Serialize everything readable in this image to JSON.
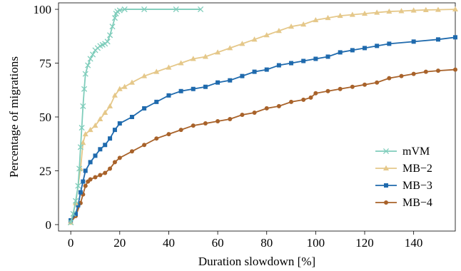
{
  "chart_data": {
    "type": "line",
    "xlabel": "Duration slowdown [%]",
    "ylabel": "Percentage of migrations",
    "xlim": [
      -5,
      157
    ],
    "ylim": [
      -3,
      103
    ],
    "xticks": [
      0,
      20,
      40,
      60,
      80,
      100,
      120,
      140
    ],
    "yticks": [
      0,
      25,
      50,
      75,
      100
    ],
    "grid": false,
    "legend_position": "center-right",
    "series": [
      {
        "name": "mVM",
        "color": "#7fcdbb",
        "marker": "x",
        "x": [
          0,
          1,
          2,
          3,
          3.5,
          4,
          4.5,
          5,
          5.5,
          6,
          7,
          8,
          9,
          10,
          11,
          12,
          13,
          14,
          15,
          16,
          17,
          18,
          18.5,
          19,
          20,
          22,
          30,
          43,
          53
        ],
        "y": [
          1,
          5,
          11,
          18,
          26,
          36,
          45,
          55,
          63,
          70,
          74,
          77,
          79,
          81,
          82,
          83,
          83.5,
          84,
          85,
          88,
          92,
          96,
          98,
          99,
          99.5,
          100,
          100,
          100,
          100
        ]
      },
      {
        "name": "MB−2",
        "color": "#e5c88a",
        "marker": "triangle",
        "x": [
          0,
          2,
          4,
          5,
          6,
          8,
          10,
          12,
          14,
          16,
          18,
          20,
          22,
          25,
          30,
          35,
          40,
          45,
          50,
          55,
          60,
          65,
          70,
          75,
          80,
          85,
          90,
          95,
          100,
          105,
          110,
          115,
          120,
          125,
          130,
          135,
          140,
          145,
          150,
          157
        ],
        "y": [
          1,
          10,
          26,
          38,
          42,
          44,
          46,
          49,
          52,
          55,
          60,
          63,
          64,
          66,
          69,
          71,
          73,
          75,
          77,
          78,
          80,
          82,
          84,
          86,
          88,
          90,
          92,
          93,
          95,
          96,
          97,
          97.5,
          98,
          98.5,
          99,
          99.2,
          99.5,
          99.7,
          99.8,
          100
        ]
      },
      {
        "name": "MB−3",
        "color": "#1f6aad",
        "marker": "square",
        "x": [
          0,
          2,
          3,
          4,
          5,
          6,
          8,
          10,
          12,
          14,
          16,
          18,
          20,
          25,
          30,
          35,
          40,
          45,
          50,
          55,
          60,
          65,
          70,
          75,
          80,
          85,
          90,
          95,
          100,
          105,
          110,
          115,
          120,
          125,
          130,
          140,
          150,
          157
        ],
        "y": [
          2,
          5,
          9,
          15,
          20,
          25,
          29,
          32,
          35,
          37,
          40,
          44,
          47,
          50,
          54,
          57,
          60,
          62,
          63,
          64,
          66,
          67,
          69,
          71,
          72,
          74,
          75,
          76,
          77,
          78,
          80,
          81,
          82,
          83,
          84,
          85,
          86,
          87
        ]
      },
      {
        "name": "MB−4",
        "color": "#a8622a",
        "marker": "circle",
        "x": [
          0,
          2,
          4,
          5,
          6,
          7,
          8,
          10,
          12,
          14,
          16,
          18,
          20,
          25,
          30,
          35,
          40,
          45,
          50,
          55,
          60,
          65,
          70,
          75,
          80,
          85,
          90,
          95,
          98,
          100,
          105,
          110,
          115,
          120,
          125,
          130,
          135,
          140,
          145,
          150,
          157
        ],
        "y": [
          1,
          4,
          10,
          14,
          18,
          20,
          21,
          22,
          23,
          24,
          26,
          29,
          31,
          34,
          37,
          40,
          42,
          44,
          46,
          47,
          48,
          49,
          51,
          52,
          54,
          55,
          57,
          58,
          59,
          61,
          62,
          63,
          64,
          65,
          66,
          68,
          69,
          70,
          71,
          71.5,
          72
        ]
      }
    ]
  }
}
